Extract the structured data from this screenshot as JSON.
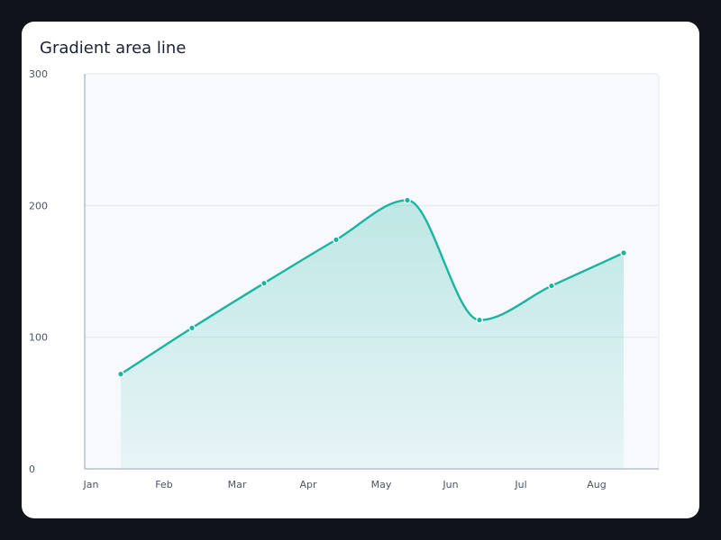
{
  "chart_data": {
    "type": "area",
    "title": "Gradient area line",
    "xlabel": "",
    "ylabel": "",
    "categories": [
      "Jan",
      "Feb",
      "Mar",
      "Apr",
      "May",
      "Jun",
      "Jul",
      "Aug"
    ],
    "series": [
      {
        "values": [
          72,
          107,
          141,
          174,
          204,
          113,
          139,
          164
        ]
      }
    ],
    "ylim": [
      0,
      300
    ],
    "yticks": [
      0,
      100,
      200,
      300
    ],
    "grid": true,
    "smooth": true,
    "line_color": "#1ab4a0",
    "fill_color_top": "#1ab4a0",
    "fill_color_bottom": "#1ab4a0",
    "plot_background": "#f7f9fd"
  }
}
